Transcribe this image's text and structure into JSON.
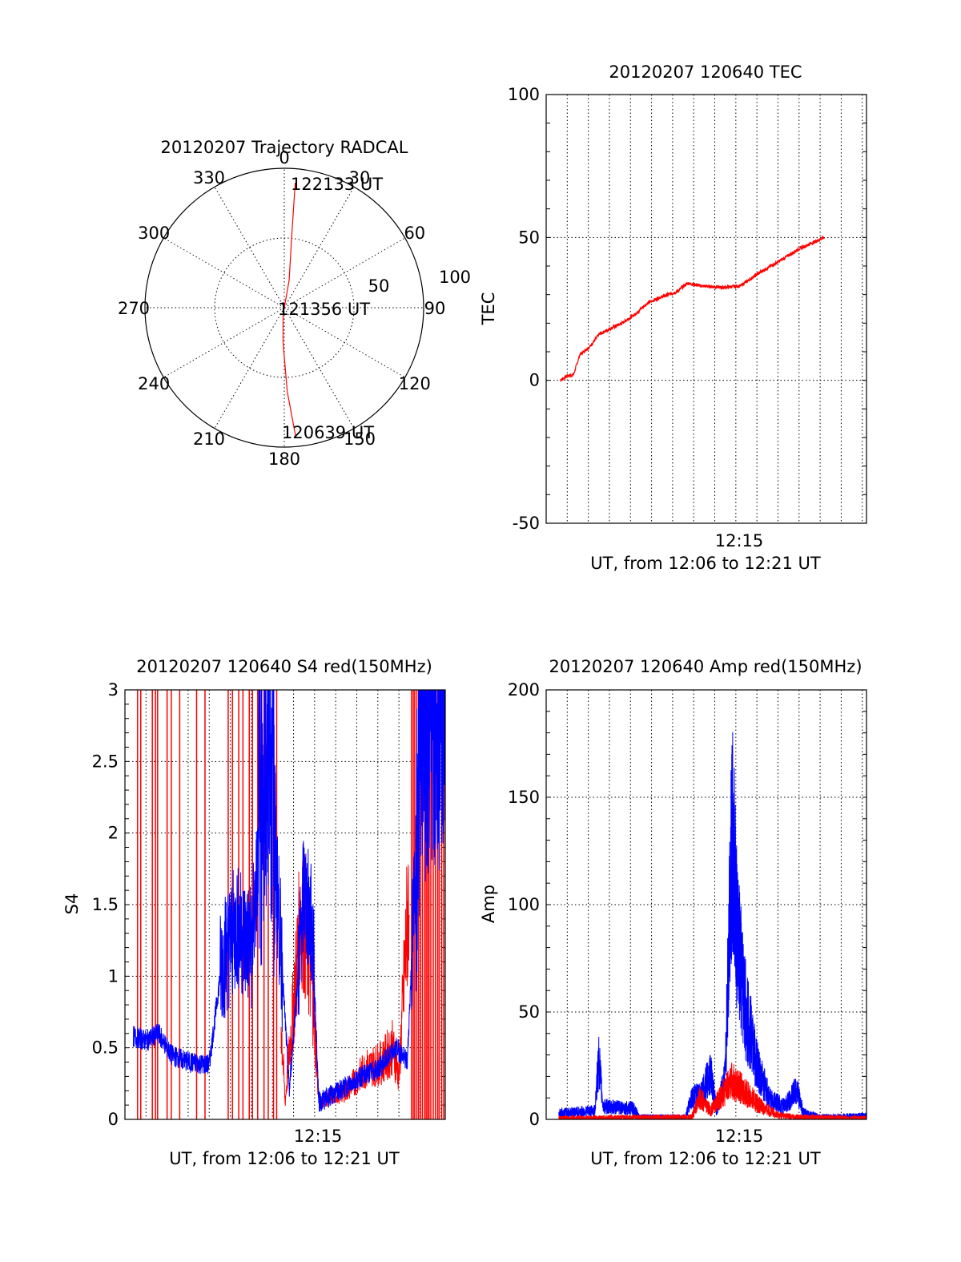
{
  "colors": {
    "red": "#ff0000",
    "blue": "#0000ff",
    "axis": "#000000"
  },
  "chart_data": [
    {
      "type": "polar",
      "title": "20120207 Trajectory RADCAL",
      "angle_labels": [
        "0",
        "30",
        "60",
        "90",
        "120",
        "150",
        "180",
        "210",
        "240",
        "270",
        "300",
        "330"
      ],
      "radius_labels": [
        "50",
        "100"
      ],
      "rlim": [
        0,
        100
      ],
      "annotations": [
        "122133 UT",
        "121356 UT",
        "120639 UT"
      ],
      "trajectory": {
        "color": "red",
        "points": [
          {
            "az": 175,
            "r": 92,
            "label_index": 2
          },
          {
            "az": 178,
            "r": 60
          },
          {
            "az": 182,
            "r": 25
          },
          {
            "az": 190,
            "r": 5,
            "label_index": 1
          },
          {
            "az": 10,
            "r": 20
          },
          {
            "az": 6,
            "r": 50
          },
          {
            "az": 5,
            "r": 90,
            "label_index": 0
          }
        ]
      }
    },
    {
      "type": "line",
      "title": "20120207 120640 TEC",
      "ylabel": "TEC",
      "xlabel": "UT, from 12:06 to 12:21 UT",
      "xtick_label": "12:15",
      "xlim_minutes": [
        6.0,
        21.2
      ],
      "ylim": [
        -50,
        100
      ],
      "yticks": [
        "-50",
        "0",
        "50",
        "100"
      ],
      "series": [
        {
          "color": "red",
          "anchors": [
            [
              6.67,
              0
            ],
            [
              7.0,
              1.5
            ],
            [
              7.3,
              2
            ],
            [
              7.6,
              9
            ],
            [
              8.1,
              12
            ],
            [
              8.5,
              16
            ],
            [
              9.0,
              18
            ],
            [
              9.6,
              20
            ],
            [
              10.2,
              23
            ],
            [
              10.8,
              27
            ],
            [
              11.4,
              29
            ],
            [
              12.2,
              31
            ],
            [
              12.7,
              34
            ],
            [
              13.4,
              33
            ],
            [
              14.4,
              32.5
            ],
            [
              15.2,
              33
            ],
            [
              16.2,
              38
            ],
            [
              16.9,
              41
            ],
            [
              18.0,
              46
            ],
            [
              19.2,
              50
            ]
          ]
        }
      ]
    },
    {
      "type": "line",
      "title": "20120207 120640 S4 red(150MHz)",
      "ylabel": "S4",
      "xlabel": "UT, from 12:06 to 12:21 UT",
      "xtick_label": "12:15",
      "xlim_minutes": [
        6.0,
        21.2
      ],
      "ylim": [
        0,
        3
      ],
      "yticks": [
        "0",
        "0.5",
        "1",
        "1.5",
        "2",
        "2.5",
        "3"
      ],
      "series": [
        {
          "color": "red",
          "description_anchors": [
            [
              6.0,
              0
            ],
            [
              6.8,
              1.5
            ],
            [
              7.6,
              1.0
            ],
            [
              8.5,
              1.4
            ],
            [
              9.0,
              0.9
            ],
            [
              10.2,
              0.5
            ],
            [
              10.9,
              1.2
            ],
            [
              11.6,
              1.6
            ],
            [
              12.7,
              2.8
            ],
            [
              13.6,
              0.12
            ],
            [
              14.4,
              1.5
            ],
            [
              14.9,
              0.9
            ],
            [
              15.2,
              0.12
            ],
            [
              16.5,
              0.2
            ],
            [
              17.4,
              0.35
            ],
            [
              18.2,
              0.4
            ],
            [
              18.7,
              0.5
            ],
            [
              19.0,
              0.3
            ],
            [
              20.0,
              3.0
            ],
            [
              21.2,
              3.0
            ]
          ]
        },
        {
          "color": "blue",
          "description_anchors": [
            [
              6.4,
              0.58
            ],
            [
              7.0,
              0.55
            ],
            [
              7.6,
              0.6
            ],
            [
              8.2,
              0.45
            ],
            [
              9.0,
              0.4
            ],
            [
              10.0,
              0.38
            ],
            [
              10.6,
              1.1
            ],
            [
              11.3,
              1.35
            ],
            [
              12.0,
              1.2
            ],
            [
              12.8,
              2.6
            ],
            [
              13.4,
              1.2
            ],
            [
              13.8,
              0.2
            ],
            [
              14.5,
              1.6
            ],
            [
              14.9,
              1.3
            ],
            [
              15.2,
              0.12
            ],
            [
              16.2,
              0.2
            ],
            [
              17.2,
              0.3
            ],
            [
              18.0,
              0.35
            ],
            [
              18.9,
              0.5
            ],
            [
              19.4,
              0.4
            ],
            [
              20.0,
              2.5
            ],
            [
              21.2,
              2.8
            ]
          ]
        }
      ]
    },
    {
      "type": "line",
      "title": "20120207 120640 Amp red(150MHz)",
      "ylabel": "Amp",
      "xlabel": "UT, from 12:06 to 12:21 UT",
      "xtick_label": "12:15",
      "xlim_minutes": [
        6.0,
        21.2
      ],
      "ylim": [
        0,
        200
      ],
      "yticks": [
        "0",
        "50",
        "100",
        "150",
        "200"
      ],
      "series": [
        {
          "color": "red",
          "description_anchors": [
            [
              6.6,
              0.5
            ],
            [
              10.2,
              0.8
            ],
            [
              12.9,
              1
            ],
            [
              13.3,
              10
            ],
            [
              13.8,
              4
            ],
            [
              14.4,
              12
            ],
            [
              14.8,
              18
            ],
            [
              15.3,
              14
            ],
            [
              16.2,
              6
            ],
            [
              17.0,
              2
            ],
            [
              17.8,
              1
            ],
            [
              21.2,
              0.5
            ]
          ]
        },
        {
          "color": "blue",
          "description_anchors": [
            [
              6.6,
              3
            ],
            [
              8.3,
              4
            ],
            [
              8.5,
              28
            ],
            [
              8.7,
              6
            ],
            [
              10.2,
              5
            ],
            [
              10.4,
              1
            ],
            [
              12.6,
              1
            ],
            [
              12.9,
              10
            ],
            [
              13.4,
              12
            ],
            [
              13.8,
              22
            ],
            [
              14.1,
              4
            ],
            [
              14.5,
              20
            ],
            [
              14.8,
              136
            ],
            [
              15.1,
              80
            ],
            [
              15.4,
              55
            ],
            [
              16.0,
              25
            ],
            [
              16.6,
              10
            ],
            [
              17.3,
              6
            ],
            [
              17.9,
              14
            ],
            [
              18.2,
              3
            ],
            [
              19.0,
              1
            ],
            [
              21.2,
              1.5
            ]
          ]
        }
      ]
    }
  ]
}
